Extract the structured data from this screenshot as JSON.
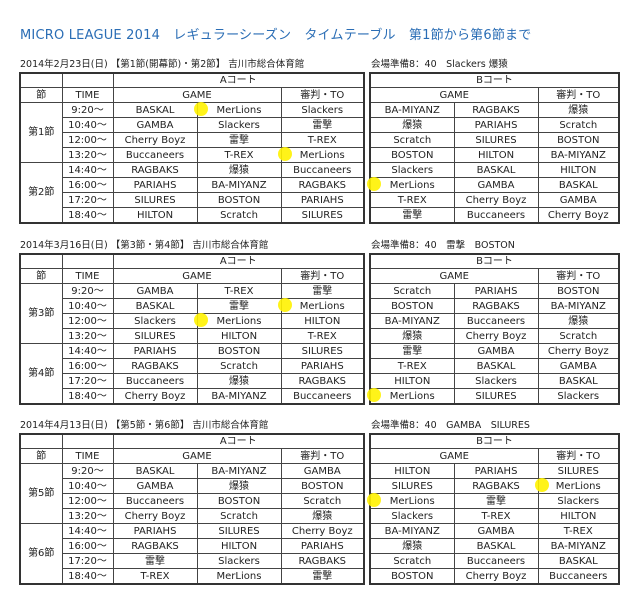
{
  "title": "MICRO LEAGUE 2014　レギュラーシーズン　タイムテーブル　第1節から第6節まで",
  "colors": {
    "title": "#2a6db5",
    "highlight": "#fff200"
  },
  "headers": {
    "court_a": "Aコート",
    "court_b": "Bコート",
    "setsu": "節",
    "time": "TIME",
    "game": "GAME",
    "ref": "審判・TO"
  },
  "sections": [
    {
      "date_venue": "2014年2月23日(日) 【第1節(開幕節)・第2節】 吉川市総合体育館",
      "prep": "会場準備8：40　Slackers 爆猿",
      "rounds": [
        "第1節",
        "第2節"
      ],
      "times": [
        "9:20～",
        "10:40～",
        "12:00～",
        "13:20～",
        "14:40～",
        "16:00～",
        "17:20～",
        "18:40～"
      ],
      "court_a": [
        [
          "BASKAL",
          "MerLions",
          "Slackers"
        ],
        [
          "GAMBA",
          "Slackers",
          "雷撃"
        ],
        [
          "Cherry Boyz",
          "雷撃",
          "T-REX"
        ],
        [
          "Buccaneers",
          "T-REX",
          "MerLions"
        ],
        [
          "RAGBAKS",
          "爆猿",
          "Buccaneers"
        ],
        [
          "PARIAHS",
          "BA-MIYANZ",
          "RAGBAKS"
        ],
        [
          "SILURES",
          "BOSTON",
          "PARIAHS"
        ],
        [
          "HILTON",
          "Scratch",
          "SILURES"
        ]
      ],
      "court_b": [
        [
          "BA-MIYANZ",
          "RAGBAKS",
          "爆猿"
        ],
        [
          "爆猿",
          "PARIAHS",
          "Scratch"
        ],
        [
          "Scratch",
          "SILURES",
          "BOSTON"
        ],
        [
          "BOSTON",
          "HILTON",
          "BA-MIYANZ"
        ],
        [
          "Slackers",
          "BASKAL",
          "HILTON"
        ],
        [
          "MerLions",
          "GAMBA",
          "BASKAL"
        ],
        [
          "T-REX",
          "Cherry Boyz",
          "GAMBA"
        ],
        [
          "雷撃",
          "Buccaneers",
          "Cherry Boyz"
        ]
      ],
      "highlights_a": [
        [
          0,
          1
        ],
        [
          3,
          2
        ]
      ],
      "highlights_b": [
        [
          5,
          0
        ]
      ]
    },
    {
      "date_venue": "2014年3月16日(日) 【第3節・第4節】 吉川市総合体育館",
      "prep": "会場準備8：40　雷撃　BOSTON",
      "rounds": [
        "第3節",
        "第4節"
      ],
      "times": [
        "9:20～",
        "10:40～",
        "12:00～",
        "13:20～",
        "14:40～",
        "16:00～",
        "17:20～",
        "18:40～"
      ],
      "court_a": [
        [
          "GAMBA",
          "T-REX",
          "雷撃"
        ],
        [
          "BASKAL",
          "雷撃",
          "MerLions"
        ],
        [
          "Slackers",
          "MerLions",
          "HILTON"
        ],
        [
          "SILURES",
          "HILTON",
          "T-REX"
        ],
        [
          "PARIAHS",
          "BOSTON",
          "SILURES"
        ],
        [
          "RAGBAKS",
          "Scratch",
          "PARIAHS"
        ],
        [
          "Buccaneers",
          "爆猿",
          "RAGBAKS"
        ],
        [
          "Cherry Boyz",
          "BA-MIYANZ",
          "Buccaneers"
        ]
      ],
      "court_b": [
        [
          "Scratch",
          "PARIAHS",
          "BOSTON"
        ],
        [
          "BOSTON",
          "RAGBAKS",
          "BA-MIYANZ"
        ],
        [
          "BA-MIYANZ",
          "Buccaneers",
          "爆猿"
        ],
        [
          "爆猿",
          "Cherry Boyz",
          "Scratch"
        ],
        [
          "雷撃",
          "GAMBA",
          "Cherry Boyz"
        ],
        [
          "T-REX",
          "BASKAL",
          "GAMBA"
        ],
        [
          "HILTON",
          "Slackers",
          "BASKAL"
        ],
        [
          "MerLions",
          "SILURES",
          "Slackers"
        ]
      ],
      "highlights_a": [
        [
          1,
          2
        ],
        [
          2,
          1
        ]
      ],
      "highlights_b": [
        [
          7,
          0
        ]
      ]
    },
    {
      "date_venue": "2014年4月13日(日) 【第5節・第6節】 吉川市総合体育館",
      "prep": "会場準備8：40　GAMBA　SILURES",
      "rounds": [
        "第5節",
        "第6節"
      ],
      "times": [
        "9:20～",
        "10:40～",
        "12:00～",
        "13:20～",
        "14:40～",
        "16:00～",
        "17:20～",
        "18:40～"
      ],
      "court_a": [
        [
          "BASKAL",
          "BA-MIYANZ",
          "GAMBA"
        ],
        [
          "GAMBA",
          "爆猿",
          "BOSTON"
        ],
        [
          "Buccaneers",
          "BOSTON",
          "Scratch"
        ],
        [
          "Cherry Boyz",
          "Scratch",
          "爆猿"
        ],
        [
          "PARIAHS",
          "SILURES",
          "Cherry Boyz"
        ],
        [
          "RAGBAKS",
          "HILTON",
          "PARIAHS"
        ],
        [
          "雷撃",
          "Slackers",
          "RAGBAKS"
        ],
        [
          "T-REX",
          "MerLions",
          "雷撃"
        ]
      ],
      "court_b": [
        [
          "HILTON",
          "PARIAHS",
          "SILURES"
        ],
        [
          "SILURES",
          "RAGBAKS",
          "MerLions"
        ],
        [
          "MerLions",
          "雷撃",
          "Slackers"
        ],
        [
          "Slackers",
          "T-REX",
          "HILTON"
        ],
        [
          "BA-MIYANZ",
          "GAMBA",
          "T-REX"
        ],
        [
          "爆猿",
          "BASKAL",
          "BA-MIYANZ"
        ],
        [
          "Scratch",
          "Buccaneers",
          "BASKAL"
        ],
        [
          "BOSTON",
          "Cherry Boyz",
          "Buccaneers"
        ]
      ],
      "highlights_a": [],
      "highlights_b": [
        [
          1,
          2
        ],
        [
          2,
          0
        ]
      ]
    }
  ]
}
